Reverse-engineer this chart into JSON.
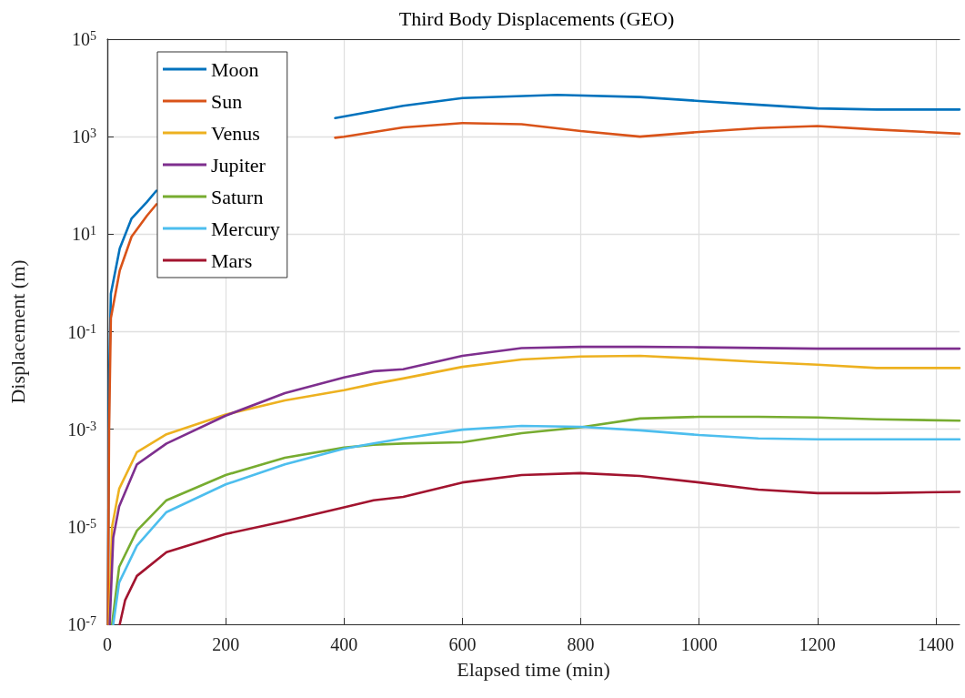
{
  "chart_data": {
    "type": "line",
    "title": "Third Body Displacements (GEO)",
    "xlabel": "Elapsed time (min)",
    "ylabel": "Displacement (m)",
    "xlim": [
      0,
      1440
    ],
    "xticks": [
      0,
      200,
      400,
      600,
      800,
      1000,
      1200,
      1400
    ],
    "ylim": [
      1e-07,
      100000
    ],
    "log": "y",
    "yticks": [
      {
        "value": 1e-07,
        "label": "10$^{-7}$"
      },
      {
        "value": 1e-05,
        "label": "10$^{-5}$"
      },
      {
        "value": 0.001,
        "label": "10$^{-3}$"
      },
      {
        "value": 0.1,
        "label": "10$^{-1}$"
      },
      {
        "value": 10,
        "label": "10$^{1}$"
      },
      {
        "value": 1000,
        "label": "10$^{3}$"
      },
      {
        "value": 100000,
        "label": "10$^{5}$"
      }
    ],
    "grid": true,
    "legend": "top left",
    "marker": "none",
    "line_style": "solid",
    "series": [
      {
        "name": "Moon",
        "color": "#0072bd",
        "x": [
          1,
          3,
          6,
          21,
          41,
          67,
          83,
          200,
          385,
          400,
          500,
          600,
          760,
          900,
          1000,
          1100,
          1200,
          1300,
          1440
        ],
        "values": [
          1e-07,
          0.01,
          0.6,
          5.1,
          21,
          46,
          78,
          null,
          2400,
          2600,
          4300,
          6200,
          7200,
          6500,
          5400,
          4500,
          3800,
          3600,
          3600
        ]
      },
      {
        "name": "Sun",
        "color": "#d95319",
        "x": [
          1,
          3,
          6,
          21,
          41,
          67,
          83,
          200,
          385,
          400,
          500,
          600,
          700,
          800,
          900,
          1000,
          1100,
          1200,
          1300,
          1440
        ],
        "values": [
          1e-07,
          0.001,
          0.19,
          1.8,
          8.9,
          24,
          41,
          null,
          950,
          1000,
          1550,
          1900,
          1800,
          1300,
          1000,
          1250,
          1500,
          1650,
          1400,
          1150
        ]
      },
      {
        "name": "Venus",
        "color": "#edb120",
        "x": [
          3,
          8,
          20,
          50,
          100,
          200,
          300,
          400,
          450,
          500,
          600,
          700,
          800,
          900,
          1000,
          1100,
          1200,
          1300,
          1440
        ],
        "values": [
          1e-07,
          1e-05,
          6e-05,
          0.00034,
          0.00079,
          0.002,
          0.0039,
          0.0063,
          0.0085,
          0.011,
          0.019,
          0.027,
          0.031,
          0.032,
          0.028,
          0.024,
          0.021,
          0.018,
          0.018
        ]
      },
      {
        "name": "Jupiter",
        "color": "#7e2f8e",
        "x": [
          4,
          10,
          20,
          50,
          100,
          200,
          300,
          400,
          450,
          500,
          600,
          700,
          800,
          900,
          1000,
          1200,
          1300,
          1440
        ],
        "values": [
          1e-07,
          6e-06,
          2.6e-05,
          0.00019,
          0.00051,
          0.0019,
          0.0055,
          0.0115,
          0.0155,
          0.017,
          0.032,
          0.046,
          0.049,
          0.049,
          0.048,
          0.045,
          0.045,
          0.045
        ]
      },
      {
        "name": "Saturn",
        "color": "#77ac30",
        "x": [
          8,
          20,
          50,
          100,
          200,
          300,
          400,
          450,
          500,
          600,
          700,
          800,
          900,
          1000,
          1100,
          1200,
          1300,
          1440
        ],
        "values": [
          1e-07,
          1.5e-06,
          8.3e-06,
          3.5e-05,
          0.000115,
          0.00026,
          0.00042,
          0.00048,
          0.00051,
          0.00054,
          0.00083,
          0.0011,
          0.00166,
          0.0018,
          0.0018,
          0.00174,
          0.0016,
          0.0015
        ]
      },
      {
        "name": "Mercury",
        "color": "#4dbeee",
        "x": [
          10,
          20,
          50,
          100,
          200,
          300,
          400,
          450,
          500,
          600,
          700,
          800,
          900,
          1000,
          1100,
          1200,
          1300,
          1440
        ],
        "values": [
          1e-07,
          7.2e-07,
          4.1e-06,
          2e-05,
          7.4e-05,
          0.00019,
          0.0004,
          0.00051,
          0.00065,
          0.00098,
          0.00117,
          0.00112,
          0.00095,
          0.00076,
          0.00065,
          0.00062,
          0.00062,
          0.00062
        ]
      },
      {
        "name": "Mars",
        "color": "#a2142f",
        "x": [
          21,
          30,
          50,
          100,
          200,
          300,
          400,
          450,
          500,
          600,
          700,
          800,
          900,
          1000,
          1100,
          1200,
          1300,
          1440
        ],
        "values": [
          1e-07,
          3.1e-07,
          9.8e-07,
          3e-06,
          7.1e-06,
          1.3e-05,
          2.5e-05,
          3.5e-05,
          4.1e-05,
          8.1e-05,
          0.000115,
          0.000126,
          0.00011,
          8.1e-05,
          5.8e-05,
          4.9e-05,
          4.9e-05,
          5.2e-05
        ]
      }
    ]
  }
}
